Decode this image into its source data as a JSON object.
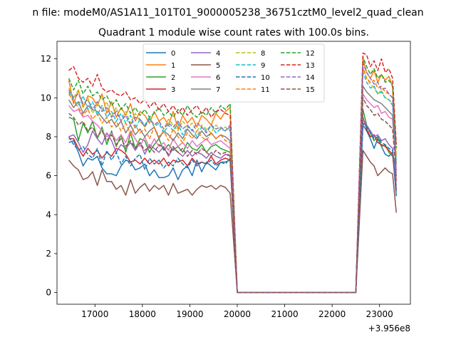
{
  "figure": {
    "suptitle": "n file: modeM0/AS1A11_101T01_9000005238_36751cztM0_level2_quad_clean",
    "offset_label": "+3.956e8"
  },
  "chart_data": {
    "type": "line",
    "title": "Quadrant 1 module wise count rates with 100.0s bins.",
    "xlabel": "",
    "ylabel": "",
    "xlim": [
      16200,
      23650
    ],
    "ylim": [
      -0.6,
      12.9
    ],
    "x_ticks": [
      17000,
      18000,
      19000,
      20000,
      21000,
      22000,
      23000
    ],
    "y_ticks": [
      0,
      2,
      4,
      6,
      8,
      10,
      12
    ],
    "x_tick_labels": [
      "17000",
      "18000",
      "19000",
      "20000",
      "21000",
      "22000",
      "23000"
    ],
    "y_tick_labels": [
      "0",
      "2",
      "4",
      "6",
      "8",
      "10",
      "12"
    ],
    "x_offset": "+3.956e8",
    "bin_width_s": 100.0,
    "segments": [
      {
        "x_start": 16450,
        "x_end": 19850,
        "step": 100
      },
      {
        "x_start": 20000,
        "x_end": 22550,
        "step": 100
      },
      {
        "x_start": 22650,
        "x_end": 23430,
        "step": 78
      }
    ],
    "legend": {
      "placement": "upper center",
      "columns": 4
    },
    "grid": false,
    "series": [
      {
        "name": "0",
        "color": "#1f77b4",
        "dashed": false,
        "seg1": [
          7.7,
          7.8,
          7.2,
          6.5,
          6.9,
          6.8,
          7.0,
          6.4,
          6.1,
          6.1,
          6.0,
          6.5,
          6.8,
          6.7,
          6.3,
          6.4,
          6.6,
          6.0,
          6.3,
          5.9,
          5.9,
          6.0,
          6.4,
          5.8,
          6.3,
          6.5,
          6.0,
          6.8,
          6.2,
          6.7,
          6.5,
          6.3,
          6.7,
          6.7,
          6.8
        ],
        "seg3": [
          8.6,
          8.3,
          7.9,
          7.4,
          7.9,
          7.5,
          7.1,
          7.0,
          7.2,
          4.95
        ]
      },
      {
        "name": "1",
        "color": "#ff7f0e",
        "dashed": false,
        "seg1": [
          10.9,
          9.7,
          10.4,
          9.5,
          10.1,
          10.0,
          9.6,
          10.2,
          9.2,
          9.8,
          9.0,
          9.5,
          9.1,
          9.7,
          8.8,
          9.3,
          9.1,
          8.7,
          9.3,
          8.8,
          9.0,
          8.6,
          9.3,
          8.4,
          9.1,
          8.7,
          9.0,
          8.5,
          9.1,
          8.9,
          8.6,
          9.2,
          8.9,
          9.3,
          9.5
        ],
        "seg3": [
          12.0,
          11.3,
          11.0,
          11.4,
          10.8,
          11.2,
          10.9,
          11.1,
          10.6,
          5.7
        ]
      },
      {
        "name": "2",
        "color": "#2ca02c",
        "dashed": false,
        "seg1": [
          9.0,
          8.9,
          7.8,
          8.7,
          8.2,
          8.8,
          7.9,
          8.5,
          7.6,
          8.3,
          7.5,
          8.1,
          7.2,
          8.2,
          7.4,
          7.9,
          7.8,
          7.2,
          7.6,
          7.9,
          7.3,
          7.6,
          7.3,
          7.5,
          7.2,
          7.7,
          7.4,
          7.3,
          7.6,
          7.2,
          7.5,
          7.6,
          7.4,
          7.3,
          7.2
        ],
        "seg3": [
          9.4,
          8.6,
          8.2,
          7.8,
          8.0,
          7.5,
          7.6,
          7.2,
          7.0,
          6.5
        ]
      },
      {
        "name": "3",
        "color": "#d62728",
        "dashed": false,
        "seg1": [
          7.9,
          7.9,
          7.4,
          7.0,
          7.4,
          7.1,
          7.3,
          6.9,
          7.2,
          7.0,
          7.4,
          7.3,
          7.1,
          6.7,
          6.8,
          6.6,
          6.9,
          6.6,
          6.8,
          6.6,
          6.9,
          6.5,
          6.8,
          6.7,
          6.8,
          6.5,
          6.9,
          6.6,
          6.7,
          6.6,
          7.0,
          6.6,
          6.8,
          6.9,
          6.8
        ],
        "seg3": [
          9.0,
          8.4,
          8.0,
          8.1,
          7.7,
          7.6,
          7.5,
          7.3,
          7.1,
          5.3
        ]
      },
      {
        "name": "4",
        "color": "#9467bd",
        "dashed": false,
        "seg1": [
          8.0,
          8.1,
          7.7,
          7.2,
          7.6,
          8.3,
          7.9,
          7.6,
          8.2,
          7.8,
          7.2,
          7.6,
          7.4,
          7.7,
          7.3,
          7.7,
          7.1,
          7.6,
          7.4,
          7.2,
          7.5,
          7.0,
          7.4,
          7.2,
          7.0,
          7.3,
          7.0,
          7.2,
          7.1,
          6.9,
          7.2,
          7.0,
          6.9,
          7.1,
          7.0
        ],
        "seg3": [
          8.9,
          8.6,
          8.3,
          8.0,
          8.1,
          7.8,
          7.9,
          7.6,
          7.4,
          5.5
        ]
      },
      {
        "name": "5",
        "color": "#8c564b",
        "dashed": false,
        "seg1": [
          6.8,
          6.5,
          6.3,
          5.8,
          5.9,
          6.2,
          5.5,
          6.3,
          5.7,
          5.7,
          5.3,
          5.5,
          5.0,
          5.8,
          5.1,
          5.4,
          5.6,
          5.2,
          5.5,
          5.3,
          5.5,
          5.0,
          5.6,
          5.1,
          5.2,
          5.3,
          5.0,
          5.3,
          5.5,
          5.4,
          5.5,
          5.3,
          5.5,
          5.4,
          5.1
        ],
        "seg3": [
          7.3,
          7.0,
          6.7,
          6.5,
          6.0,
          6.2,
          6.4,
          6.2,
          6.1,
          4.1
        ]
      },
      {
        "name": "6",
        "color": "#e377c2",
        "dashed": false,
        "seg1": [
          9.6,
          9.3,
          9.4,
          9.0,
          9.1,
          8.8,
          8.6,
          8.3,
          8.0,
          8.2,
          7.8,
          8.1,
          7.7,
          8.3,
          7.9,
          7.5,
          8.0,
          7.4,
          7.9,
          7.5,
          7.7,
          7.3,
          7.9,
          7.5,
          7.7,
          7.4,
          7.8,
          7.5,
          7.7,
          7.9,
          7.6,
          7.7,
          7.8,
          7.6,
          7.4
        ],
        "seg3": [
          10.2,
          9.9,
          9.7,
          9.5,
          9.6,
          9.2,
          9.3,
          9.0,
          8.9,
          6.3
        ]
      },
      {
        "name": "7",
        "color": "#7f7f7f",
        "dashed": false,
        "seg1": [
          9.9,
          9.5,
          9.8,
          9.2,
          9.6,
          9.4,
          9.3,
          9.0,
          8.7,
          8.9,
          8.5,
          8.8,
          8.2,
          8.6,
          8.1,
          8.4,
          8.0,
          8.3,
          8.5,
          7.9,
          8.3,
          8.1,
          7.8,
          8.2,
          7.9,
          8.4,
          8.1,
          7.9,
          8.3,
          8.0,
          8.2,
          7.9,
          8.1,
          8.0,
          7.8
        ],
        "seg3": [
          10.6,
          10.3,
          10.1,
          9.9,
          9.8,
          9.7,
          9.5,
          9.3,
          9.1,
          6.6
        ]
      },
      {
        "name": "8",
        "color": "#bcbd22",
        "dashed": true,
        "seg1": [
          10.5,
          10.0,
          10.4,
          9.6,
          10.0,
          9.2,
          9.7,
          9.4,
          9.8,
          9.0,
          9.5,
          8.8,
          9.3,
          8.7,
          9.2,
          8.8,
          8.5,
          9.0,
          8.6,
          8.8,
          8.4,
          8.9,
          8.6,
          8.3,
          8.8,
          8.5,
          8.7,
          8.3,
          8.6,
          8.4,
          8.2,
          8.6,
          8.4,
          8.5,
          8.3
        ],
        "seg3": [
          11.6,
          11.0,
          10.7,
          10.5,
          10.2,
          10.4,
          10.0,
          9.9,
          9.7,
          6.9
        ]
      },
      {
        "name": "9",
        "color": "#17becf",
        "dashed": true,
        "seg1": [
          10.3,
          9.9,
          9.6,
          10.1,
          9.4,
          9.8,
          9.1,
          9.6,
          9.0,
          9.3,
          8.8,
          9.2,
          8.7,
          9.1,
          8.4,
          8.9,
          8.6,
          9.0,
          8.5,
          8.7,
          8.2,
          8.6,
          8.3,
          8.7,
          8.1,
          8.5,
          8.4,
          8.0,
          8.5,
          8.3,
          8.6,
          8.2,
          8.4,
          8.3,
          8.5
        ],
        "seg3": [
          11.3,
          10.8,
          10.5,
          10.6,
          10.2,
          10.3,
          10.0,
          9.9,
          9.6,
          6.8
        ]
      },
      {
        "name": "10",
        "color": "#1f77b4",
        "dashed": true,
        "seg1": [
          8.0,
          7.6,
          7.3,
          7.5,
          7.1,
          6.9,
          7.4,
          6.5,
          7.3,
          6.8,
          7.2,
          6.6,
          7.0,
          6.5,
          6.9,
          7.1,
          6.3,
          6.9,
          6.6,
          6.8,
          6.4,
          6.7,
          6.5,
          6.9,
          6.6,
          6.4,
          6.8,
          6.5,
          6.7,
          6.6,
          6.8,
          6.5,
          6.7,
          6.6,
          6.9
        ],
        "seg3": [
          8.7,
          8.5,
          8.2,
          7.9,
          8.0,
          7.7,
          7.6,
          7.4,
          7.3,
          5.2
        ]
      },
      {
        "name": "11",
        "color": "#ff7f0e",
        "dashed": true,
        "seg1": [
          10.2,
          9.8,
          9.5,
          9.1,
          9.4,
          8.9,
          9.2,
          8.7,
          9.0,
          8.5,
          8.8,
          8.3,
          8.7,
          8.1,
          8.6,
          8.2,
          8.4,
          7.9,
          8.5,
          8.0,
          8.3,
          7.8,
          8.4,
          8.0,
          7.7,
          8.2,
          7.9,
          8.3,
          8.0,
          7.8,
          8.2,
          7.9,
          8.1,
          7.8,
          7.7
        ],
        "seg3": [
          11.5,
          11.0,
          10.8,
          10.9,
          10.5,
          10.6,
          10.3,
          10.2,
          10.0,
          7.0
        ]
      },
      {
        "name": "12",
        "color": "#2ca02c",
        "dashed": true,
        "seg1": [
          11.0,
          10.4,
          10.9,
          10.2,
          10.6,
          10.1,
          10.3,
          9.9,
          10.1,
          9.6,
          9.9,
          9.4,
          9.7,
          9.2,
          9.5,
          9.1,
          9.4,
          9.0,
          9.2,
          9.5,
          9.1,
          9.3,
          9.0,
          9.4,
          9.1,
          9.6,
          9.2,
          9.0,
          9.3,
          9.1,
          9.5,
          9.2,
          9.6,
          9.4,
          9.7
        ],
        "seg3": [
          12.1,
          11.6,
          11.2,
          11.5,
          11.0,
          11.2,
          10.8,
          10.9,
          10.6,
          7.4
        ]
      },
      {
        "name": "13",
        "color": "#d62728",
        "dashed": true,
        "seg1": [
          11.4,
          11.6,
          11.0,
          10.8,
          11.0,
          10.6,
          11.2,
          10.5,
          10.3,
          10.4,
          10.2,
          10.1,
          10.3,
          9.9,
          10.0,
          9.7,
          9.9,
          9.5,
          9.8,
          9.4,
          9.7,
          9.3,
          9.6,
          9.2,
          9.5,
          9.1,
          9.4,
          9.6,
          9.2,
          9.5,
          9.0,
          9.3,
          9.4,
          9.2,
          9.1
        ],
        "seg3": [
          12.3,
          12.2,
          11.6,
          11.9,
          11.4,
          12.0,
          11.3,
          11.5,
          11.0,
          7.6
        ]
      },
      {
        "name": "14",
        "color": "#9467bd",
        "dashed": true,
        "seg1": [
          10.4,
          10.0,
          10.2,
          9.7,
          9.9,
          9.4,
          9.8,
          9.3,
          9.5,
          9.0,
          9.3,
          8.8,
          9.1,
          8.6,
          9.0,
          8.9,
          8.5,
          8.9,
          8.6,
          8.8,
          8.4,
          8.7,
          8.5,
          8.8,
          8.4,
          8.6,
          8.3,
          8.7,
          8.5,
          8.2,
          8.6,
          8.4,
          8.5,
          8.3,
          8.6
        ],
        "seg3": [
          11.8,
          11.3,
          11.0,
          10.7,
          10.8,
          10.4,
          10.5,
          10.2,
          10.0,
          5.8
        ]
      },
      {
        "name": "15",
        "color": "#8c564b",
        "dashed": true,
        "seg1": [
          9.2,
          9.0,
          8.6,
          8.8,
          8.3,
          8.5,
          8.0,
          8.3,
          7.8,
          8.1,
          7.6,
          7.9,
          7.5,
          7.8,
          7.4,
          7.7,
          7.3,
          7.5,
          7.2,
          7.6,
          7.4,
          7.1,
          7.5,
          7.2,
          7.4,
          7.0,
          7.3,
          7.1,
          7.4,
          7.2,
          7.0,
          7.3,
          7.1,
          7.2,
          7.0
        ],
        "seg3": [
          10.0,
          9.6,
          9.4,
          9.1,
          9.2,
          8.9,
          8.8,
          8.6,
          8.4,
          6.0
        ]
      }
    ]
  }
}
